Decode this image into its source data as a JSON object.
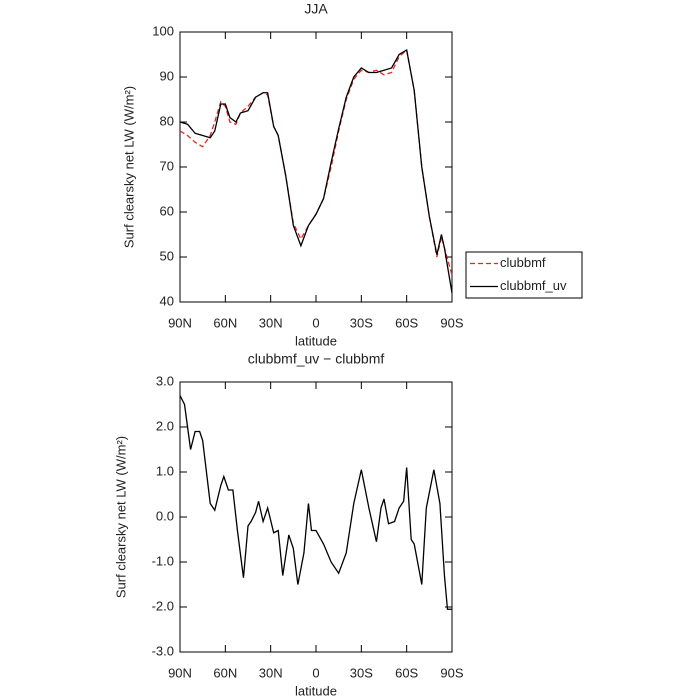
{
  "chart_data": [
    {
      "type": "line",
      "title": "JJA",
      "xlabel": "latitude",
      "ylabel": "Surf clearsky net LW (W/m²)",
      "x": [
        90,
        85,
        80,
        75,
        70,
        67,
        63,
        60,
        57,
        53,
        50,
        45,
        40,
        35,
        32,
        28,
        25,
        20,
        15,
        10,
        5,
        0,
        -5,
        -10,
        -15,
        -20,
        -25,
        -30,
        -35,
        -40,
        -45,
        -50,
        -55,
        -60,
        -65,
        -70,
        -75,
        -80,
        -83,
        -85,
        -90
      ],
      "series": [
        {
          "name": "clubbmf",
          "color": "#e3261f",
          "linestyle": "dashed",
          "values": [
            78,
            77,
            75.5,
            74.5,
            77,
            80,
            84.5,
            83.5,
            80,
            79.5,
            82,
            83.5,
            85.5,
            86.5,
            86,
            79,
            77,
            68,
            57.5,
            54,
            57,
            59.5,
            63,
            70,
            78,
            85,
            89.5,
            91.5,
            91,
            91.5,
            90.5,
            91,
            94.5,
            96,
            87,
            70,
            59,
            50,
            54.5,
            52,
            46
          ]
        },
        {
          "name": "clubbmf_uv",
          "color": "#000000",
          "linestyle": "solid",
          "values": [
            80,
            79.5,
            77.5,
            77,
            76.5,
            78,
            84,
            84,
            81,
            80,
            82,
            82.5,
            85.5,
            86.5,
            86.5,
            79,
            77,
            68,
            57,
            52.5,
            57,
            59.5,
            63,
            71,
            78.5,
            85.5,
            90,
            92,
            91,
            91,
            91.5,
            92,
            95,
            96,
            87,
            70,
            59,
            50.5,
            55,
            52,
            42
          ]
        }
      ],
      "xlim": [
        90,
        -90
      ],
      "xticks": [
        {
          "value": 90,
          "label": "90N"
        },
        {
          "value": 60,
          "label": "60N"
        },
        {
          "value": 30,
          "label": "30N"
        },
        0,
        {
          "value": -30,
          "label": "30S"
        },
        {
          "value": -60,
          "label": "60S"
        },
        {
          "value": -90,
          "label": "90S"
        }
      ],
      "ylim": [
        40,
        100
      ],
      "yticks": [
        40,
        50,
        60,
        70,
        80,
        90,
        100
      ],
      "legend": "right"
    },
    {
      "type": "line",
      "title": "clubbmf_uv − clubbmf",
      "xlabel": "latitude",
      "ylabel": "Surf clearsky net LW (W/m²)",
      "x": [
        90,
        87,
        83,
        80,
        77,
        75,
        70,
        67,
        63,
        61,
        58,
        55,
        52,
        48,
        45,
        43,
        40,
        38,
        35,
        32,
        28,
        25,
        22,
        18,
        15,
        12,
        8,
        5,
        3,
        0,
        -5,
        -10,
        -15,
        -20,
        -25,
        -30,
        -35,
        -40,
        -43,
        -45,
        -48,
        -52,
        -55,
        -58,
        -60,
        -63,
        -65,
        -70,
        -73,
        -78,
        -82,
        -85,
        -87,
        -90
      ],
      "series": [
        {
          "color": "#000000",
          "linestyle": "solid",
          "values": [
            2.7,
            2.5,
            1.5,
            1.9,
            1.9,
            1.7,
            0.3,
            0.15,
            0.7,
            0.9,
            0.6,
            0.6,
            -0.3,
            -1.35,
            -0.2,
            -0.1,
            0.1,
            0.35,
            -0.1,
            0.2,
            -0.35,
            -0.3,
            -1.3,
            -0.4,
            -0.7,
            -1.5,
            -0.8,
            0.3,
            -0.3,
            -0.3,
            -0.6,
            -1.0,
            -1.25,
            -0.8,
            0.3,
            1.05,
            0.2,
            -0.55,
            0.2,
            0.4,
            -0.15,
            -0.1,
            0.2,
            0.35,
            1.1,
            -0.5,
            -0.6,
            -1.5,
            0.2,
            1.05,
            0.3,
            -1.3,
            -2.05,
            -2.05
          ]
        }
      ],
      "xlim": [
        90,
        -90
      ],
      "xticks": [
        {
          "value": 90,
          "label": "90N"
        },
        {
          "value": 60,
          "label": "60N"
        },
        {
          "value": 30,
          "label": "30N"
        },
        0,
        {
          "value": -30,
          "label": "30S"
        },
        {
          "value": -60,
          "label": "60S"
        },
        {
          "value": -90,
          "label": "90S"
        }
      ],
      "ylim": [
        -3,
        3
      ],
      "yticks": [
        {
          "value": -3,
          "label": "-3.0"
        },
        {
          "value": -2,
          "label": "-2.0"
        },
        {
          "value": -1,
          "label": "-1.0"
        },
        {
          "value": 0,
          "label": "0.0"
        },
        {
          "value": 1,
          "label": "1.0"
        },
        {
          "value": 2,
          "label": "2.0"
        },
        {
          "value": 3,
          "label": "3.0"
        }
      ]
    }
  ]
}
